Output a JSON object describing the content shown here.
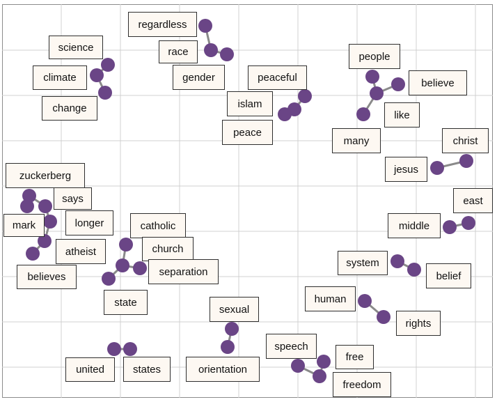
{
  "colors": {
    "node": "#6a4586",
    "edge": "#8a8a8a",
    "grid": "#d0d0d0",
    "label_bg": "#fdf8f2",
    "label_border": "#2e2e2e"
  },
  "clusters": [
    {
      "id": "science-climate-change",
      "words": [
        "science",
        "climate",
        "change"
      ]
    },
    {
      "id": "regardless-race-gender",
      "words": [
        "regardless",
        "race",
        "gender"
      ]
    },
    {
      "id": "peaceful-islam-peace",
      "words": [
        "peaceful",
        "islam",
        "peace"
      ]
    },
    {
      "id": "people-believe-like-many",
      "words": [
        "people",
        "believe",
        "like",
        "many"
      ]
    },
    {
      "id": "jesus-christ",
      "words": [
        "jesus",
        "christ"
      ]
    },
    {
      "id": "zuckerberg-says-mark-longer-atheist-believes",
      "words": [
        "zuckerberg",
        "says",
        "mark",
        "longer",
        "atheist",
        "believes"
      ]
    },
    {
      "id": "catholic-church-separation-state",
      "words": [
        "catholic",
        "church",
        "separation",
        "state"
      ]
    },
    {
      "id": "middle-east",
      "words": [
        "middle",
        "east"
      ]
    },
    {
      "id": "system-belief",
      "words": [
        "system",
        "belief"
      ]
    },
    {
      "id": "human-rights",
      "words": [
        "human",
        "rights"
      ]
    },
    {
      "id": "sexual-orientation",
      "words": [
        "sexual",
        "orientation"
      ]
    },
    {
      "id": "united-states",
      "words": [
        "united",
        "states"
      ]
    },
    {
      "id": "speech-free-freedom",
      "words": [
        "speech",
        "free",
        "freedom"
      ]
    }
  ]
}
